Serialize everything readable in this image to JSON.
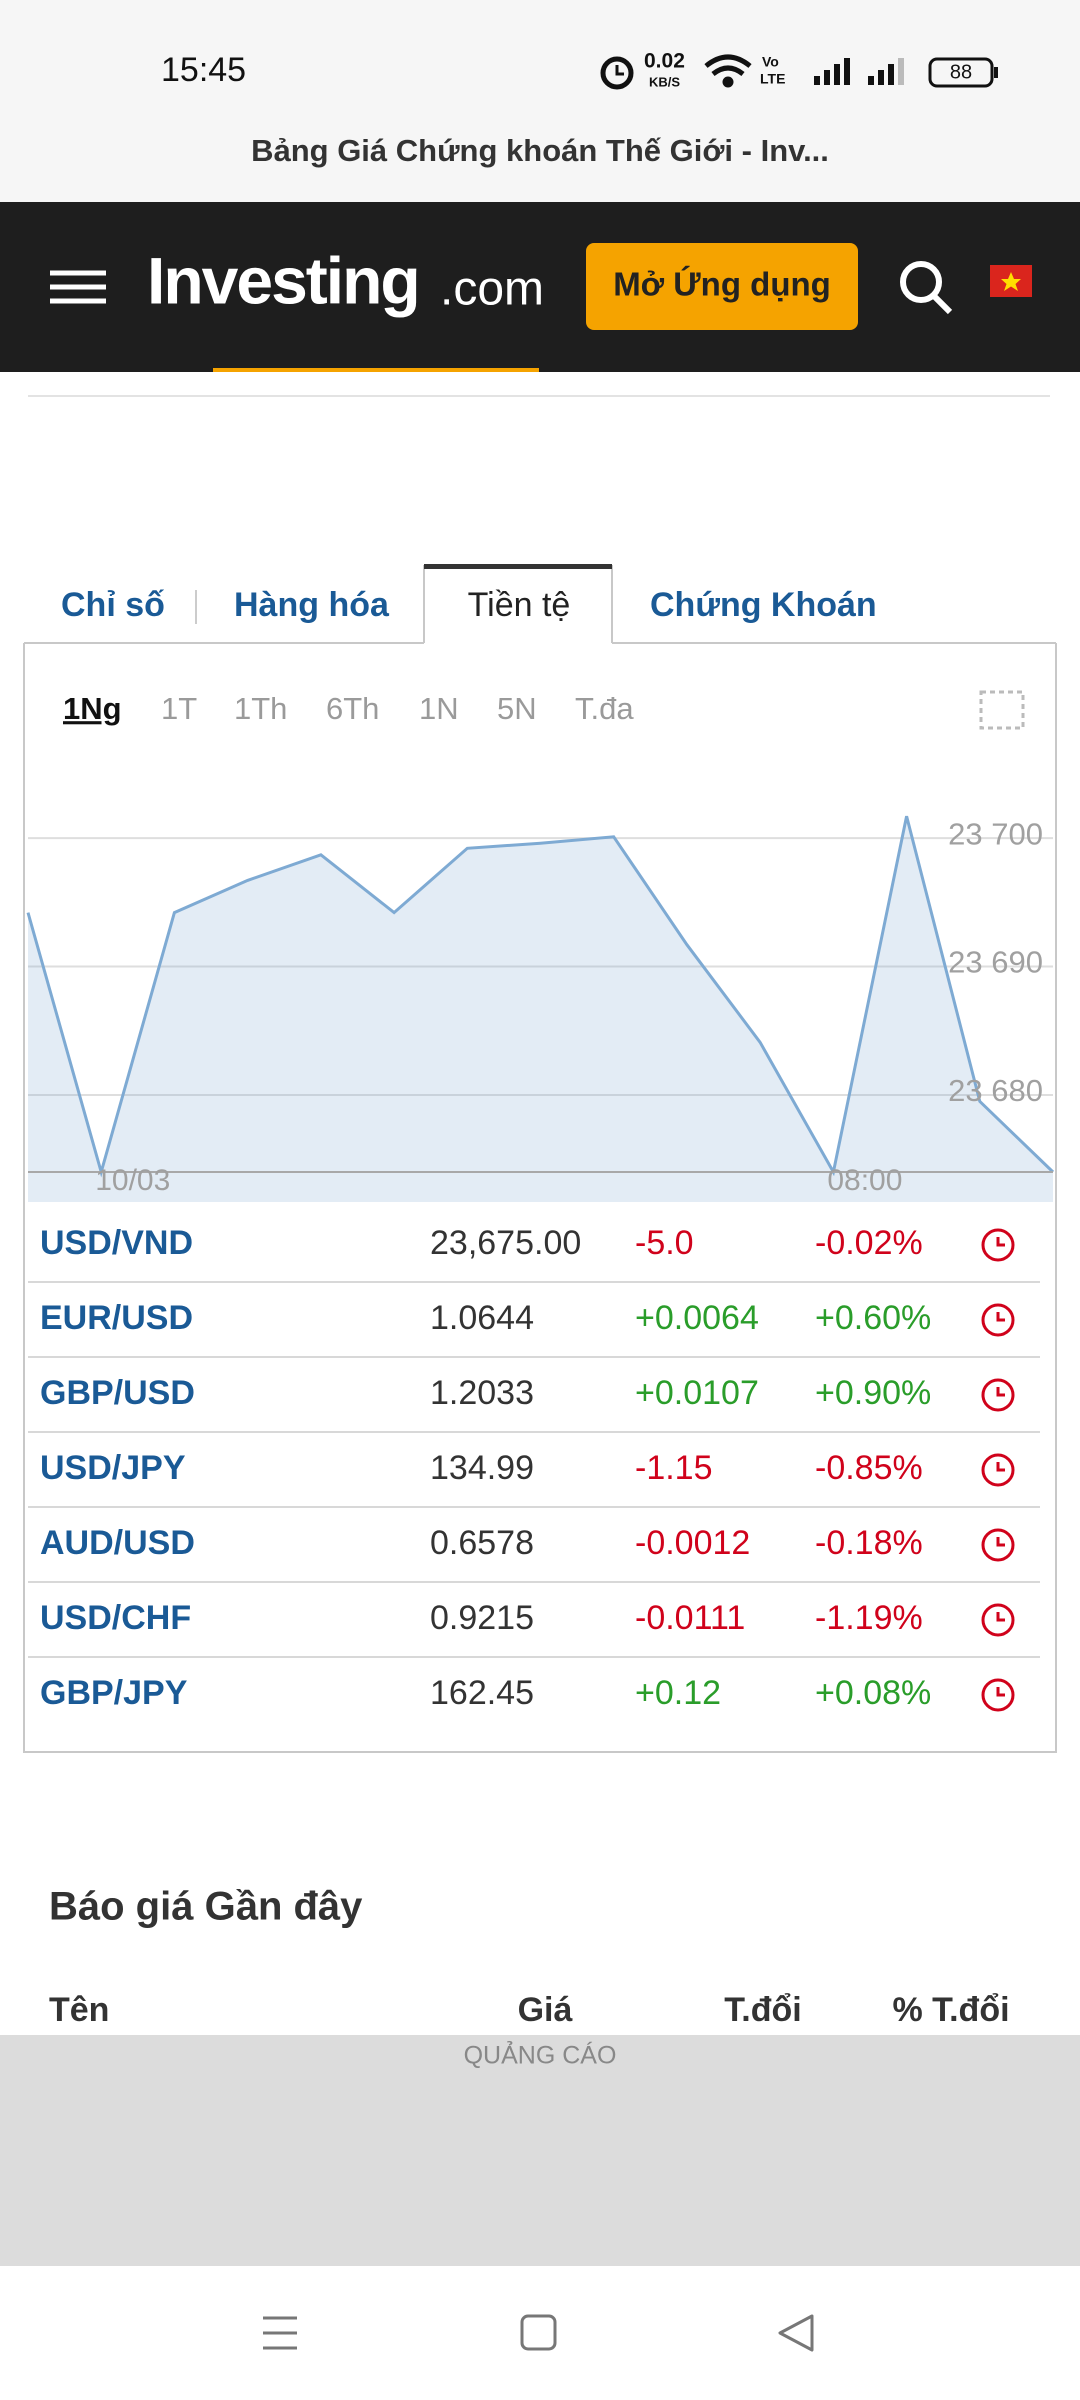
{
  "status_bar": {
    "time": "15:45",
    "speed": "0.02",
    "speed_unit": "KB/S",
    "network": [
      "Vo",
      "LTE"
    ],
    "battery": "88"
  },
  "browser": {
    "title": "Bảng Giá Chứng khoán Thế Giới - Inv..."
  },
  "header": {
    "logo": "Investing",
    "logo_suffix": ".com",
    "button": "Mở Ứng dụng"
  },
  "tabs": [
    "Chỉ số",
    "Hàng hóa",
    "Tiền tệ",
    "Chứng Khoán"
  ],
  "periods": [
    "1Ng",
    "1T",
    "1Th",
    "6Th",
    "1N",
    "5N",
    "T.đa"
  ],
  "chart_data": {
    "type": "area",
    "categories": [
      null,
      "10/03",
      null,
      null,
      null,
      null,
      null,
      null,
      null,
      null,
      null,
      "08:00",
      null,
      null,
      null
    ],
    "values": [
      23694.2,
      23674,
      23694.2,
      23696.7,
      23698.7,
      23694.2,
      23699.2,
      23699.6,
      23700.1,
      23691.7,
      23684.1,
      23674,
      23701.7,
      23679.5,
      23674
    ],
    "color": "#7eaad3",
    "ylim": [
      23674,
      23706
    ],
    "yticks": [
      {
        "value": 23680,
        "label": "23 680"
      },
      {
        "value": 23690,
        "label": "23 690"
      },
      {
        "value": 23700,
        "label": "23 700"
      }
    ],
    "grid": true
  },
  "quotes": {
    "rows": [
      [
        "USD/VND",
        "23,675.00",
        "-5.0",
        "-0.02%"
      ],
      [
        "EUR/USD",
        "1.0644",
        "+0.0064",
        "+0.60%"
      ],
      [
        "GBP/USD",
        "1.2033",
        "+0.0107",
        "+0.90%"
      ],
      [
        "USD/JPY",
        "134.99",
        "-1.15",
        "-0.85%"
      ],
      [
        "AUD/USD",
        "0.6578",
        "-0.0012",
        "-0.18%"
      ],
      [
        "USD/CHF",
        "0.9215",
        "-0.0111",
        "-1.19%"
      ],
      [
        "GBP/JPY",
        "162.45",
        "+0.12",
        "+0.08%"
      ]
    ]
  },
  "recent": {
    "title": "Báo giá Gần đây",
    "columns": [
      "Tên",
      "Giá",
      "T.đổi",
      "% T.đổi"
    ]
  },
  "ad": {
    "label": "QUẢNG CÁO"
  }
}
